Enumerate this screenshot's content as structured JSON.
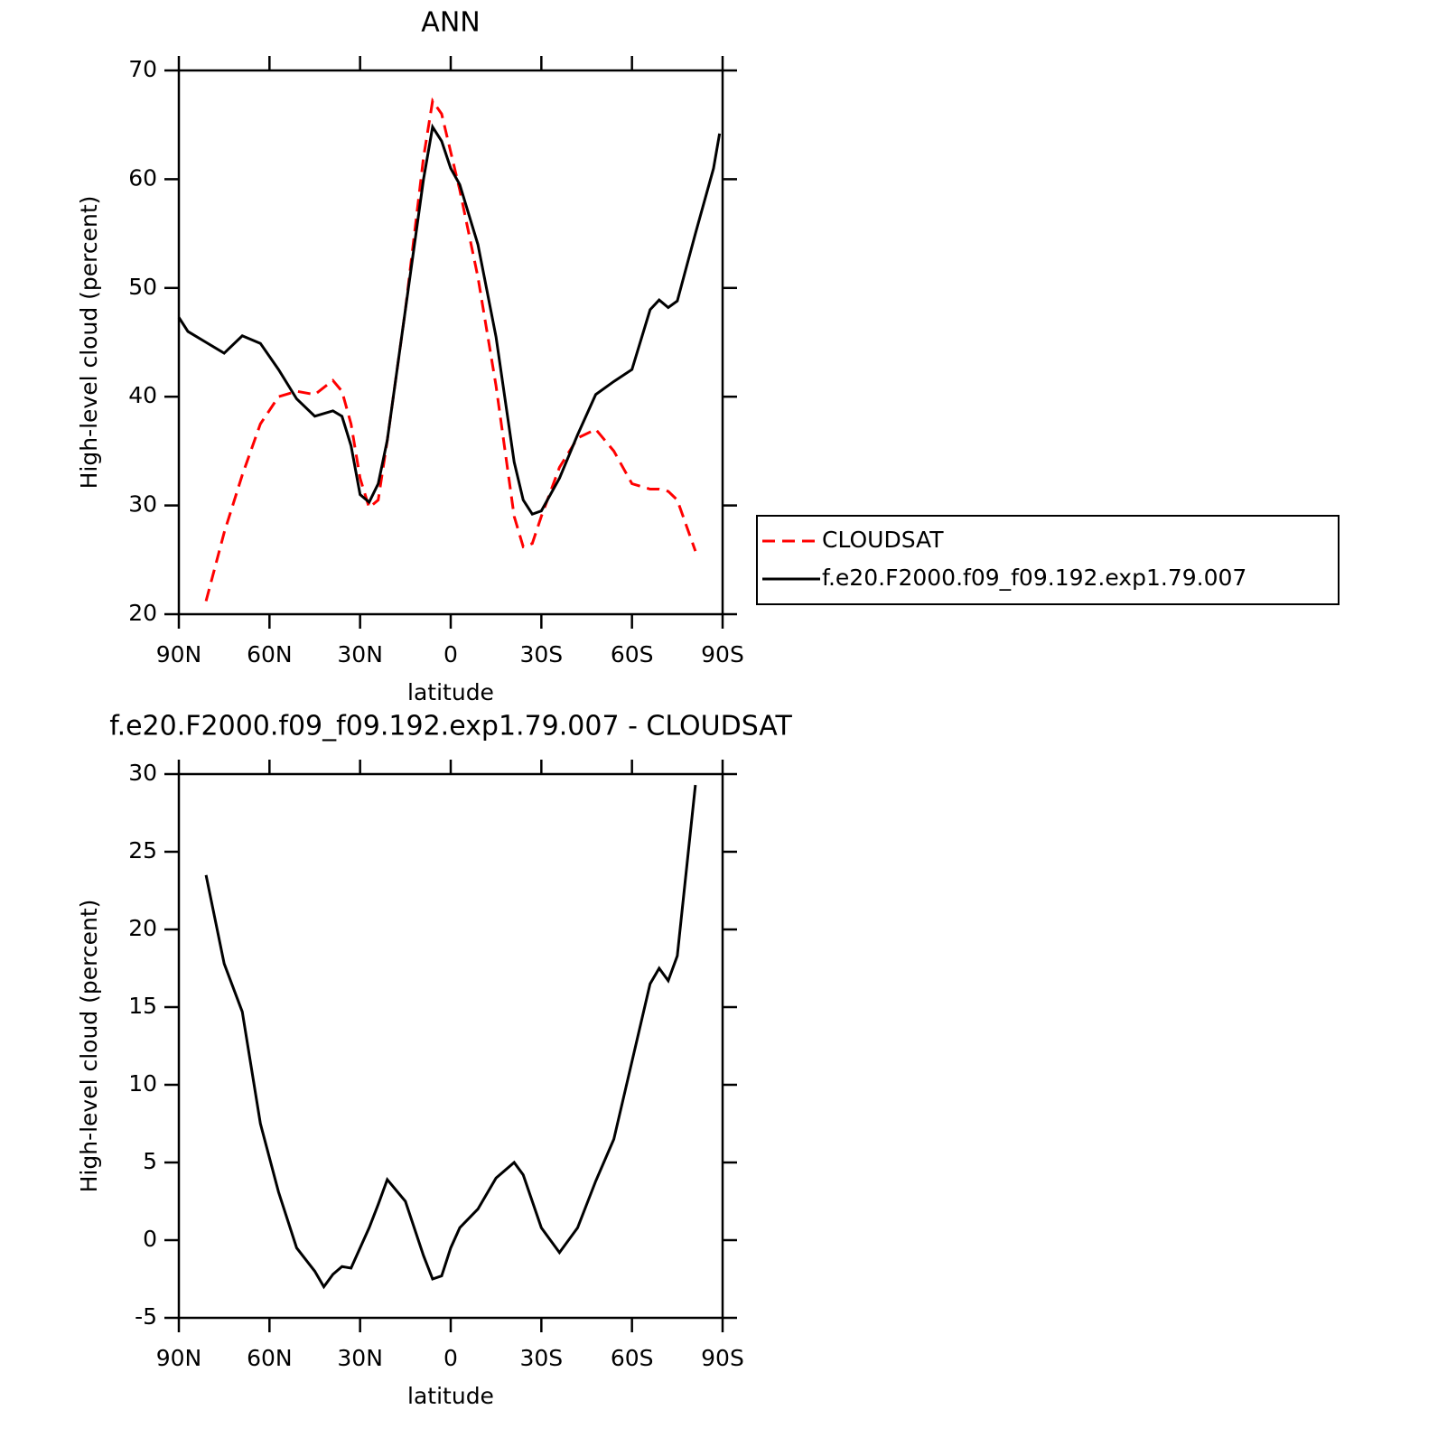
{
  "chart_data": [
    {
      "type": "line",
      "title": "ANN",
      "xlabel": "latitude",
      "ylabel": "High-level cloud (percent)",
      "x": [
        90,
        87,
        81,
        75,
        69,
        63,
        57,
        51,
        45,
        39,
        36,
        33,
        30,
        27,
        24,
        21,
        15,
        9,
        6,
        3,
        0,
        -3,
        -9,
        -15,
        -21,
        -24,
        -27,
        -30,
        -36,
        -42,
        -48,
        -54,
        -60,
        -66,
        -69,
        -72,
        -75,
        -81,
        -87,
        -89
      ],
      "series": [
        {
          "name": "CLOUDSAT",
          "color": "#ff0000",
          "dashed": true,
          "values": [
            null,
            null,
            21.2,
            27.5,
            32.8,
            37.5,
            40.0,
            40.5,
            40.2,
            41.5,
            40.5,
            37.5,
            32.5,
            29.8,
            30.5,
            36,
            48,
            62,
            67.2,
            66,
            62.5,
            59,
            51,
            41,
            29,
            26.2,
            26.5,
            29,
            33.5,
            36.2,
            37,
            35,
            32,
            31.5,
            31.5,
            31.3,
            30.5,
            25.8,
            null,
            null
          ]
        },
        {
          "name": "f.e20.F2000.f09_f09.192.exp1.79.007",
          "color": "#000000",
          "dashed": false,
          "values": [
            47.3,
            46,
            45,
            44,
            45.6,
            44.9,
            42.5,
            39.8,
            38.2,
            38.7,
            38.2,
            35.5,
            31,
            30.3,
            32,
            36,
            48,
            60,
            64.8,
            63.5,
            61,
            59.5,
            54,
            45.5,
            34,
            30.5,
            29.2,
            29.5,
            32.5,
            36.5,
            40.2,
            41.4,
            42.5,
            48,
            48.9,
            48.2,
            48.8,
            55,
            61,
            64.2
          ]
        }
      ],
      "xlim": [
        90,
        -90
      ],
      "xticks": [
        {
          "value": 90,
          "label": "90N"
        },
        {
          "value": 60,
          "label": "60N"
        },
        {
          "value": 30,
          "label": "30N"
        },
        0,
        {
          "value": -30,
          "label": "30S"
        },
        {
          "value": -60,
          "label": "60S"
        },
        {
          "value": -90,
          "label": "90S"
        }
      ],
      "ylim": [
        20,
        70
      ],
      "yticks": [
        20,
        30,
        40,
        50,
        60,
        70
      ],
      "legend": "right"
    },
    {
      "type": "line",
      "title": "f.e20.F2000.f09_f09.192.exp1.79.007 - CLOUDSAT",
      "xlabel": "latitude",
      "ylabel": "High-level cloud (percent)",
      "x": [
        90,
        87,
        81,
        75,
        69,
        63,
        57,
        51,
        45,
        42,
        39,
        36,
        33,
        30,
        27,
        24,
        21,
        15,
        9,
        6,
        3,
        0,
        -3,
        -9,
        -15,
        -21,
        -24,
        -27,
        -30,
        -36,
        -42,
        -48,
        -54,
        -60,
        -66,
        -69,
        -72,
        -75,
        -81,
        -87,
        -89
      ],
      "values": [
        null,
        null,
        23.5,
        17.8,
        14.7,
        7.5,
        3.1,
        -0.5,
        -2.0,
        -3.0,
        -2.2,
        -1.7,
        -1.8,
        -0.5,
        0.8,
        2.3,
        3.9,
        2.5,
        -1,
        -2.5,
        -2.3,
        -0.5,
        0.8,
        2,
        4,
        5,
        4.2,
        2.5,
        0.8,
        -0.8,
        0.8,
        3.8,
        6.5,
        11.5,
        16.5,
        17.5,
        16.7,
        18.3,
        29.3,
        null,
        null
      ],
      "color": "#000000",
      "xlim": [
        90,
        -90
      ],
      "xticks": [
        {
          "value": 90,
          "label": "90N"
        },
        {
          "value": 60,
          "label": "60N"
        },
        {
          "value": 30,
          "label": "30N"
        },
        0,
        {
          "value": -30,
          "label": "30S"
        },
        {
          "value": -60,
          "label": "60S"
        },
        {
          "value": -90,
          "label": "90S"
        }
      ],
      "ylim": [
        -5,
        30
      ],
      "yticks": [
        -5,
        0,
        5,
        10,
        15,
        20,
        25,
        30
      ]
    }
  ]
}
